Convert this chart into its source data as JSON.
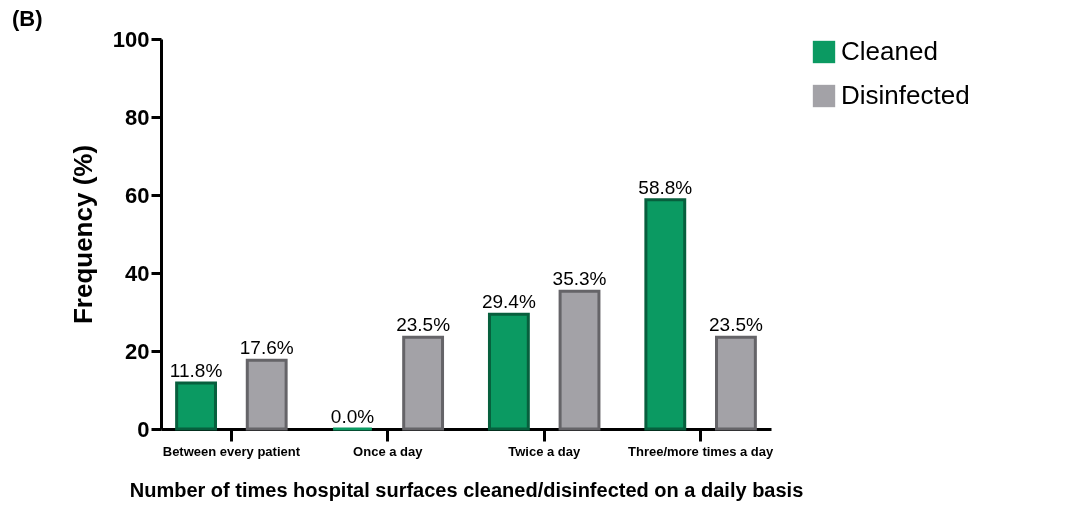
{
  "chart_data": {
    "type": "bar",
    "annotations": [
      "(B)"
    ],
    "xlabel": "Number of times hospital surfaces cleaned/disinfected on a daily basis",
    "ylabel": "Frequency (%)",
    "categories": [
      "Between every patient",
      "Once a day",
      "Twice a day",
      "Three/more times a day"
    ],
    "series": [
      {
        "name": "Cleaned",
        "color": "#0b9a62",
        "values": [
          11.8,
          0.0,
          29.4,
          58.8
        ],
        "value_labels": [
          "11.8%",
          "0.0%",
          "29.4%",
          "58.8%"
        ]
      },
      {
        "name": "Disinfected",
        "color": "#a3a2a7",
        "values": [
          17.6,
          23.5,
          35.3,
          23.5
        ],
        "value_labels": [
          "17.6%",
          "23.5%",
          "35.3%",
          "23.5%"
        ]
      }
    ],
    "ylim": [
      0,
      100
    ],
    "yticks": [
      0,
      20,
      40,
      60,
      80,
      100
    ],
    "grid": false,
    "legend": "top right"
  }
}
